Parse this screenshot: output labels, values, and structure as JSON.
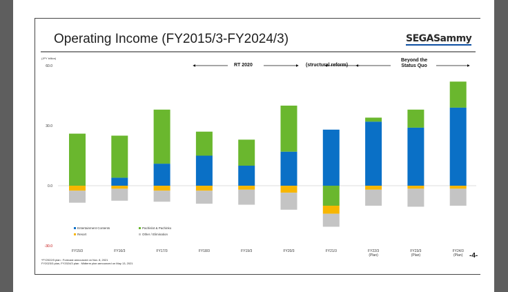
{
  "title": "Operating Income (FY2015/3-FY2024/3)",
  "logo_text": "SEGASammy",
  "page_number": "-4-",
  "footnotes": [
    "*FY2022/3 plan : Forecast announced on Nov. 8, 2021",
    "FY2023/3 plan, FY2024/3 plan : Midterm plan announced on May 13, 2021"
  ],
  "eras": {
    "rt2020": "RT 2020",
    "reform": "(structural reform)",
    "beyond_line1": "Beyond the",
    "beyond_line2": "Status Quo"
  },
  "chart_data": {
    "type": "bar",
    "stacked": true,
    "unit_label": "(JPY billion)",
    "ylim": [
      -30,
      60
    ],
    "y_ticks": [
      "60.0",
      "30.0",
      "0.0",
      "-30.0"
    ],
    "y_tick_values": [
      60,
      30,
      0,
      -30
    ],
    "grid": "zero line only",
    "legend_placement": "bottom-left inside plot",
    "categories": [
      "FY15/3",
      "FY16/3",
      "FY17/3",
      "FY18/3",
      "FY19/3",
      "FY20/3",
      "FY21/3",
      "FY22/3",
      "FY23/3",
      "FY24/3"
    ],
    "category_sublabels": [
      "",
      "",
      "",
      "",
      "",
      "",
      "",
      "(Plan)",
      "(Plan)",
      "(Plan)"
    ],
    "series": [
      {
        "name": "Entertainment Contents",
        "color": "#0a70c6",
        "values": [
          0,
          4,
          11,
          15,
          10,
          17,
          28,
          32,
          29,
          39
        ]
      },
      {
        "name": "Pachislot & Pachinko",
        "color": "#6ab72e",
        "values": [
          26,
          21,
          27,
          12,
          13,
          23,
          0,
          2,
          9,
          13
        ]
      },
      {
        "name": "Resort",
        "color": "#f7b600",
        "values": [
          -2.5,
          -1.5,
          -2.5,
          -2.5,
          -2,
          -3.5,
          -4,
          -2,
          -1.5,
          -1.5
        ]
      },
      {
        "name": "Other / Elimination",
        "color": "#c4c4c4",
        "values": [
          -6,
          -6,
          -5.5,
          -6.5,
          -7.5,
          -8.5,
          -6.5,
          -8,
          -9,
          -8.5
        ]
      }
    ],
    "negative_series_index": 1,
    "negative_values_extra": [
      0,
      0,
      0,
      0,
      0,
      0,
      -10,
      0,
      0,
      0
    ]
  }
}
